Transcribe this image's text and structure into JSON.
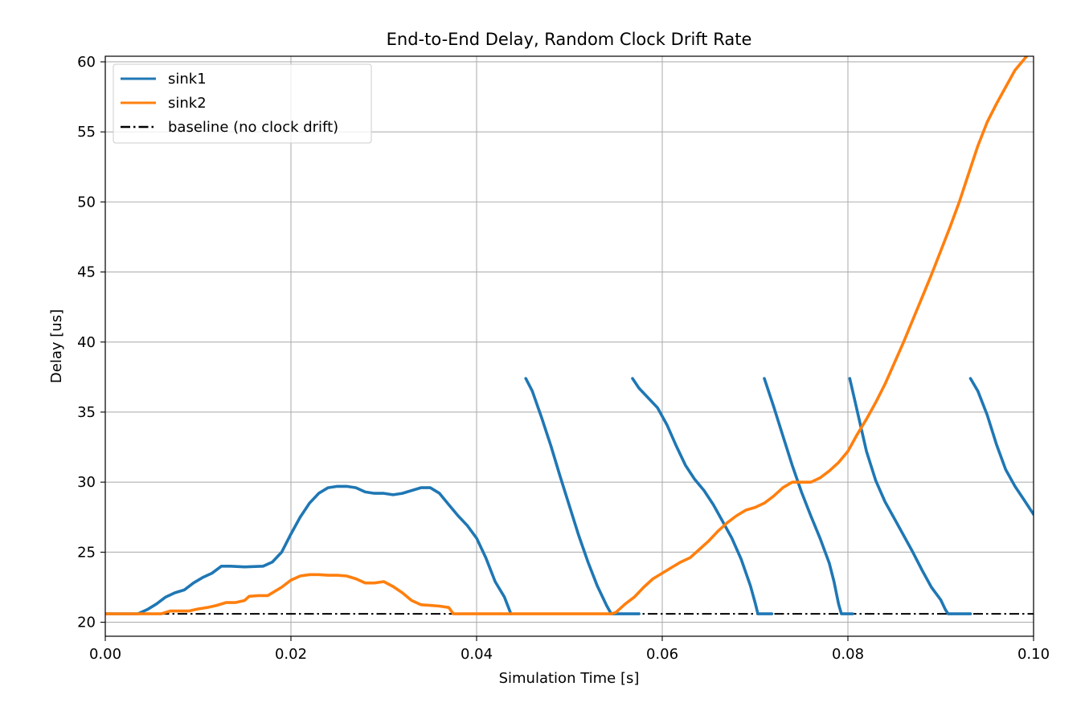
{
  "chart_data": {
    "type": "line",
    "title": "End-to-End Delay, Random Clock Drift Rate",
    "xlabel": "Simulation Time [s]",
    "ylabel": "Delay [us]",
    "xlim": [
      0.0,
      0.1
    ],
    "ylim": [
      19.0,
      60.4
    ],
    "xticks": [
      0.0,
      0.02,
      0.04,
      0.06,
      0.08,
      0.1
    ],
    "xtick_labels": [
      "0.00",
      "0.02",
      "0.04",
      "0.06",
      "0.08",
      "0.10"
    ],
    "yticks": [
      20,
      25,
      30,
      35,
      40,
      45,
      50,
      55,
      60
    ],
    "ytick_labels": [
      "20",
      "25",
      "30",
      "35",
      "40",
      "45",
      "50",
      "55",
      "60"
    ],
    "grid": true,
    "legend_position": "upper-left",
    "series": [
      {
        "name": "sink1",
        "color": "#1f77b4",
        "style": "solid",
        "segments": [
          [
            [
              0.0,
              20.6
            ],
            [
              0.0035,
              20.6
            ],
            [
              0.0045,
              20.9
            ],
            [
              0.0055,
              21.3
            ],
            [
              0.0065,
              21.8
            ],
            [
              0.0075,
              22.1
            ],
            [
              0.0085,
              22.3
            ],
            [
              0.0095,
              22.8
            ],
            [
              0.0105,
              23.2
            ],
            [
              0.0115,
              23.5
            ],
            [
              0.0125,
              24.0
            ],
            [
              0.0135,
              24.0
            ],
            [
              0.015,
              23.95
            ],
            [
              0.017,
              24.0
            ],
            [
              0.018,
              24.3
            ],
            [
              0.019,
              25.0
            ],
            [
              0.02,
              26.3
            ],
            [
              0.021,
              27.5
            ],
            [
              0.022,
              28.5
            ],
            [
              0.023,
              29.2
            ],
            [
              0.024,
              29.6
            ],
            [
              0.025,
              29.7
            ],
            [
              0.026,
              29.7
            ],
            [
              0.027,
              29.6
            ],
            [
              0.028,
              29.3
            ],
            [
              0.029,
              29.2
            ],
            [
              0.03,
              29.2
            ],
            [
              0.031,
              29.1
            ],
            [
              0.032,
              29.2
            ],
            [
              0.033,
              29.4
            ],
            [
              0.034,
              29.6
            ],
            [
              0.035,
              29.6
            ],
            [
              0.036,
              29.2
            ],
            [
              0.037,
              28.4
            ],
            [
              0.038,
              27.6
            ],
            [
              0.039,
              26.9
            ],
            [
              0.04,
              26.0
            ],
            [
              0.041,
              24.6
            ],
            [
              0.042,
              22.9
            ],
            [
              0.043,
              21.8
            ],
            [
              0.0437,
              20.6
            ]
          ],
          [
            [
              0.0453,
              37.4
            ],
            [
              0.046,
              36.5
            ],
            [
              0.047,
              34.6
            ],
            [
              0.048,
              32.6
            ],
            [
              0.049,
              30.4
            ],
            [
              0.05,
              28.3
            ],
            [
              0.051,
              26.2
            ],
            [
              0.052,
              24.3
            ],
            [
              0.053,
              22.6
            ],
            [
              0.054,
              21.2
            ],
            [
              0.0545,
              20.6
            ],
            [
              0.0575,
              20.6
            ]
          ],
          [
            [
              0.0568,
              37.4
            ],
            [
              0.0575,
              36.7
            ],
            [
              0.0585,
              36.0
            ],
            [
              0.0595,
              35.3
            ],
            [
              0.0605,
              34.1
            ],
            [
              0.0615,
              32.6
            ],
            [
              0.0625,
              31.2
            ],
            [
              0.0635,
              30.2
            ],
            [
              0.0645,
              29.4
            ],
            [
              0.0655,
              28.4
            ],
            [
              0.0665,
              27.2
            ],
            [
              0.0675,
              26.0
            ],
            [
              0.0685,
              24.5
            ],
            [
              0.0695,
              22.6
            ],
            [
              0.07,
              21.4
            ],
            [
              0.0703,
              20.6
            ],
            [
              0.0718,
              20.6
            ]
          ],
          [
            [
              0.071,
              37.4
            ],
            [
              0.072,
              35.4
            ],
            [
              0.073,
              33.3
            ],
            [
              0.074,
              31.2
            ],
            [
              0.075,
              29.3
            ],
            [
              0.076,
              27.6
            ],
            [
              0.077,
              26.0
            ],
            [
              0.078,
              24.2
            ],
            [
              0.0785,
              22.9
            ],
            [
              0.079,
              21.3
            ],
            [
              0.0793,
              20.6
            ],
            [
              0.0805,
              20.6
            ]
          ],
          [
            [
              0.0802,
              37.4
            ],
            [
              0.081,
              35.1
            ],
            [
              0.082,
              32.2
            ],
            [
              0.083,
              30.1
            ],
            [
              0.084,
              28.6
            ],
            [
              0.085,
              27.4
            ],
            [
              0.086,
              26.2
            ],
            [
              0.087,
              25.0
            ],
            [
              0.088,
              23.7
            ],
            [
              0.089,
              22.5
            ],
            [
              0.09,
              21.6
            ],
            [
              0.0905,
              20.9
            ],
            [
              0.0908,
              20.6
            ],
            [
              0.0932,
              20.6
            ]
          ],
          [
            [
              0.0932,
              37.4
            ],
            [
              0.094,
              36.5
            ],
            [
              0.095,
              34.8
            ],
            [
              0.096,
              32.7
            ],
            [
              0.097,
              30.9
            ],
            [
              0.098,
              29.7
            ],
            [
              0.099,
              28.7
            ],
            [
              0.1,
              27.7
            ]
          ]
        ]
      },
      {
        "name": "sink2",
        "color": "#ff7f0e",
        "style": "solid",
        "segments": [
          [
            [
              0.0,
              20.6
            ],
            [
              0.002,
              20.6
            ],
            [
              0.004,
              20.6
            ],
            [
              0.006,
              20.6
            ],
            [
              0.007,
              20.8
            ],
            [
              0.009,
              20.8
            ],
            [
              0.01,
              20.95
            ],
            [
              0.011,
              21.05
            ],
            [
              0.012,
              21.2
            ],
            [
              0.013,
              21.4
            ],
            [
              0.014,
              21.4
            ],
            [
              0.015,
              21.55
            ],
            [
              0.0155,
              21.85
            ],
            [
              0.0165,
              21.9
            ],
            [
              0.0175,
              21.9
            ],
            [
              0.018,
              22.1
            ],
            [
              0.019,
              22.5
            ],
            [
              0.02,
              23.0
            ],
            [
              0.021,
              23.3
            ],
            [
              0.022,
              23.4
            ],
            [
              0.023,
              23.4
            ],
            [
              0.024,
              23.35
            ],
            [
              0.025,
              23.35
            ],
            [
              0.026,
              23.3
            ],
            [
              0.027,
              23.1
            ],
            [
              0.028,
              22.8
            ],
            [
              0.029,
              22.8
            ],
            [
              0.03,
              22.9
            ],
            [
              0.031,
              22.55
            ],
            [
              0.032,
              22.1
            ],
            [
              0.033,
              21.55
            ],
            [
              0.034,
              21.25
            ],
            [
              0.035,
              21.2
            ],
            [
              0.036,
              21.15
            ],
            [
              0.037,
              21.05
            ],
            [
              0.0375,
              20.6
            ],
            [
              0.04,
              20.6
            ],
            [
              0.045,
              20.6
            ],
            [
              0.05,
              20.6
            ],
            [
              0.0545,
              20.6
            ],
            [
              0.055,
              20.7
            ],
            [
              0.056,
              21.3
            ],
            [
              0.057,
              21.8
            ],
            [
              0.058,
              22.5
            ],
            [
              0.059,
              23.1
            ],
            [
              0.06,
              23.5
            ],
            [
              0.061,
              23.9
            ],
            [
              0.062,
              24.3
            ],
            [
              0.063,
              24.6
            ],
            [
              0.064,
              25.2
            ],
            [
              0.065,
              25.8
            ],
            [
              0.066,
              26.5
            ],
            [
              0.067,
              27.1
            ],
            [
              0.068,
              27.6
            ],
            [
              0.069,
              28.0
            ],
            [
              0.07,
              28.2
            ],
            [
              0.071,
              28.5
            ],
            [
              0.072,
              29.0
            ],
            [
              0.073,
              29.6
            ],
            [
              0.074,
              30.0
            ],
            [
              0.075,
              30.0
            ],
            [
              0.076,
              30.0
            ],
            [
              0.077,
              30.3
            ],
            [
              0.078,
              30.8
            ],
            [
              0.079,
              31.4
            ],
            [
              0.08,
              32.2
            ],
            [
              0.081,
              33.4
            ],
            [
              0.082,
              34.5
            ],
            [
              0.083,
              35.7
            ],
            [
              0.084,
              37.0
            ],
            [
              0.085,
              38.5
            ],
            [
              0.086,
              40.0
            ],
            [
              0.087,
              41.6
            ],
            [
              0.088,
              43.2
            ],
            [
              0.089,
              44.8
            ],
            [
              0.09,
              46.5
            ],
            [
              0.091,
              48.2
            ],
            [
              0.092,
              50.0
            ],
            [
              0.093,
              52.0
            ],
            [
              0.094,
              54.0
            ],
            [
              0.095,
              55.7
            ],
            [
              0.096,
              57.0
            ],
            [
              0.097,
              58.2
            ],
            [
              0.098,
              59.4
            ],
            [
              0.099,
              60.2
            ],
            [
              0.1,
              61.0
            ]
          ]
        ]
      },
      {
        "name": "baseline (no clock drift)",
        "color": "#000000",
        "style": "dashdot",
        "segments": [
          [
            [
              0.0,
              20.6
            ],
            [
              0.1,
              20.6
            ]
          ]
        ]
      }
    ]
  }
}
